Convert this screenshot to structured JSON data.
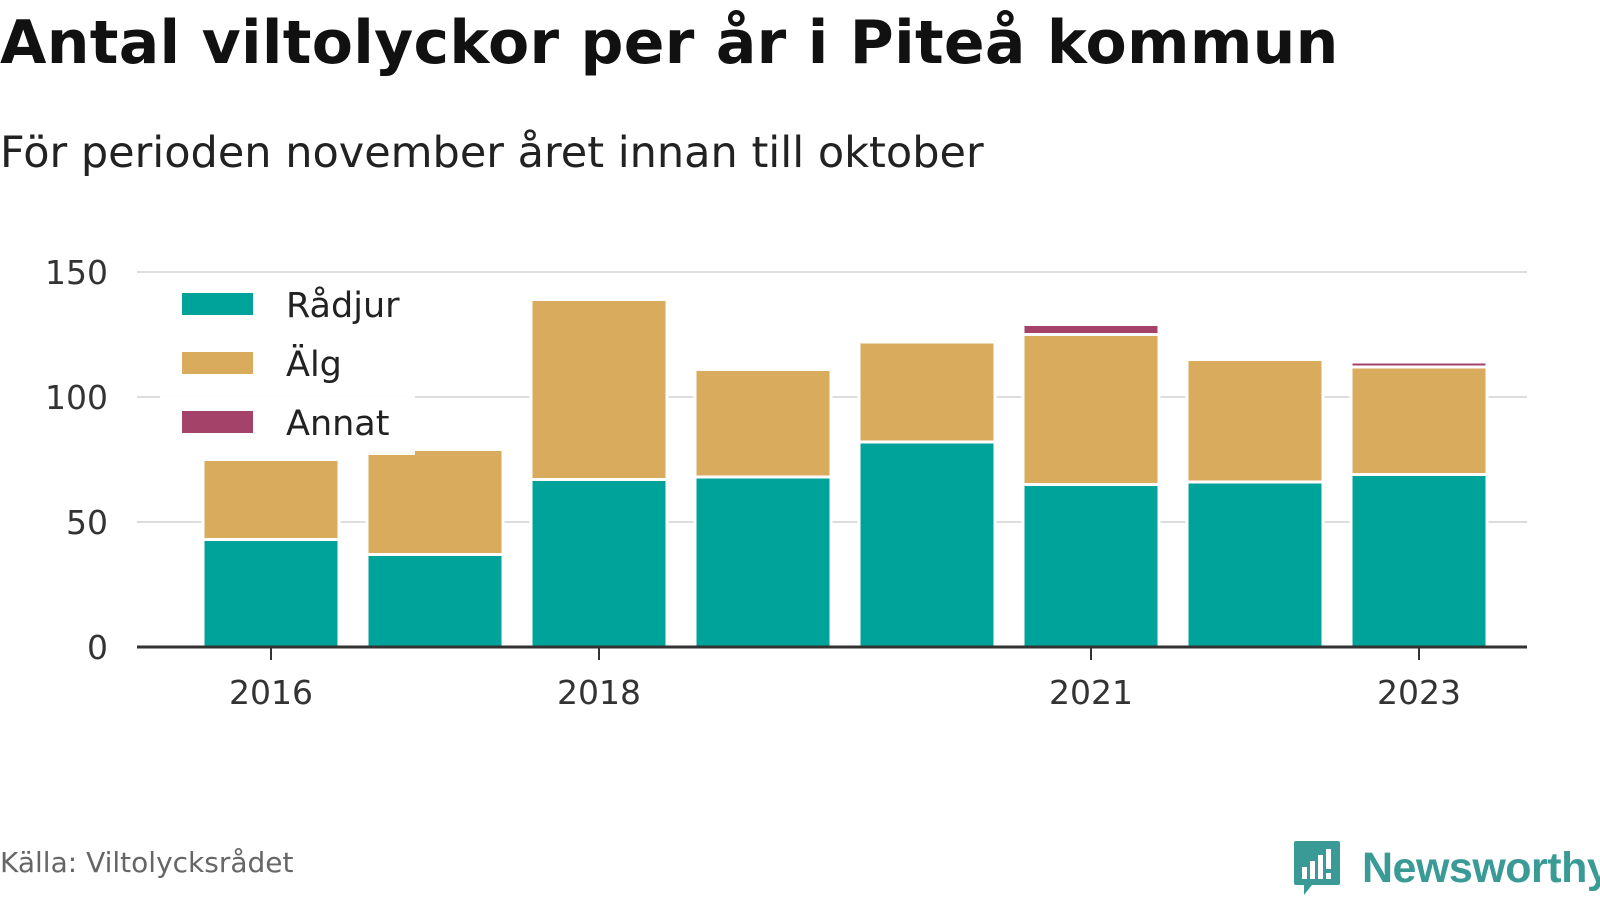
{
  "header": {
    "title": "Antal viltolyckor per år i Piteå kommun",
    "subtitle": "För perioden november året innan till oktober"
  },
  "footer": {
    "source": "Källa: Viltolycksrådet",
    "brand": "Newsworthy",
    "brand_icon": "newsworthy-logo-icon"
  },
  "colors": {
    "Rådjur": "#00a39a",
    "Älg": "#d9ab5d",
    "Annat": "#a5426a",
    "axis": "#333333",
    "grid": "#dddddd",
    "brand": "#3a9b96"
  },
  "chart_data": {
    "type": "bar",
    "stacked": true,
    "categories": [
      "2016",
      "2017",
      "2018",
      "2019",
      "2020",
      "2021",
      "2022",
      "2023"
    ],
    "x_tick_labels": [
      "2016",
      "2018",
      "2021",
      "2023"
    ],
    "series": [
      {
        "name": "Rådjur",
        "values": [
          43,
          37,
          67,
          68,
          82,
          65,
          66,
          69
        ]
      },
      {
        "name": "Älg",
        "values": [
          32,
          42,
          72,
          43,
          40,
          60,
          49,
          43
        ]
      },
      {
        "name": "Annat",
        "values": [
          0,
          0,
          1,
          0,
          0,
          4,
          0,
          2
        ]
      }
    ],
    "y_ticks": [
      0,
      50,
      100,
      150
    ],
    "ylim": [
      0,
      150
    ],
    "grid": true,
    "legend_position": "top-left"
  }
}
